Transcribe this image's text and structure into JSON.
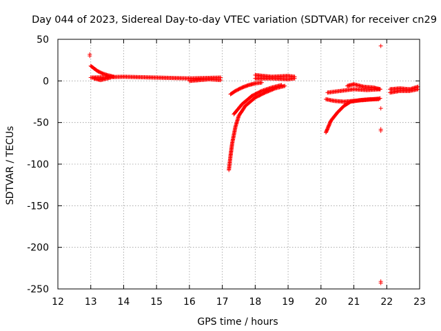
{
  "chart_data": {
    "type": "scatter",
    "title": "Day 044 of 2023, Sidereal Day-to-day VTEC variation (SDTVAR) for receiver cn29",
    "xlabel": "GPS time / hours",
    "ylabel": "SDTVAR / TECUs",
    "xlim": [
      12,
      23
    ],
    "ylim": [
      -250,
      50
    ],
    "xticks": [
      12,
      13,
      14,
      15,
      16,
      17,
      18,
      19,
      20,
      21,
      22,
      23
    ],
    "yticks": [
      50,
      0,
      -50,
      -100,
      -150,
      -200,
      -250
    ],
    "grid": true,
    "marker_color": "#ff0000",
    "marker": "+",
    "series": [
      {
        "name": "SDTVAR",
        "segments": [
          {
            "kind": "line",
            "x": [
              13.0,
              14.0,
              15.0,
              16.0,
              16.95
            ],
            "y": [
              4,
              5,
              4,
              3,
              4
            ]
          },
          {
            "kind": "line",
            "x": [
              13.0,
              13.1,
              13.2,
              13.35,
              13.5,
              13.7
            ],
            "y": [
              18,
              15,
              12,
              9,
              7,
              5
            ]
          },
          {
            "kind": "line",
            "x": [
              13.1,
              13.3,
              13.6
            ],
            "y": [
              3,
              1,
              4
            ]
          },
          {
            "kind": "line",
            "x": [
              16.0,
              16.3,
              16.6,
              16.95
            ],
            "y": [
              0,
              1,
              2,
              1
            ]
          },
          {
            "kind": "line",
            "x": [
              17.2,
              17.25,
              17.3,
              17.4,
              17.5,
              17.7,
              18.0,
              18.3,
              18.6,
              18.9
            ],
            "y": [
              -107,
              -90,
              -75,
              -55,
              -42,
              -30,
              -20,
              -14,
              -9,
              -6
            ]
          },
          {
            "kind": "line",
            "x": [
              17.25,
              17.4,
              17.6,
              17.8,
              18.0,
              18.2
            ],
            "y": [
              -16,
              -12,
              -8,
              -5,
              -3,
              -2
            ]
          },
          {
            "kind": "line",
            "x": [
              17.35,
              17.6,
              17.9,
              18.2,
              18.5,
              18.8
            ],
            "y": [
              -40,
              -28,
              -18,
              -12,
              -8,
              -5
            ]
          },
          {
            "kind": "line",
            "x": [
              18.0,
              18.5,
              19.0,
              19.2
            ],
            "y": [
              7,
              5,
              6,
              5
            ]
          },
          {
            "kind": "line",
            "x": [
              18.0,
              18.5,
              19.0,
              19.2
            ],
            "y": [
              3,
              3,
              2,
              3
            ]
          },
          {
            "kind": "line",
            "x": [
              20.15,
              20.3,
              20.5,
              20.7,
              20.9,
              21.2,
              21.5,
              21.75
            ],
            "y": [
              -62,
              -48,
              -38,
              -30,
              -25,
              -23,
              -22,
              -22
            ]
          },
          {
            "kind": "line",
            "x": [
              20.15,
              20.4,
              20.7,
              21.0,
              21.3,
              21.6,
              21.8
            ],
            "y": [
              -22,
              -24,
              -25,
              -24,
              -23,
              -22,
              -21
            ]
          },
          {
            "kind": "line",
            "x": [
              20.2,
              20.6,
              21.0,
              21.4,
              21.8
            ],
            "y": [
              -14,
              -12,
              -10,
              -11,
              -10
            ]
          },
          {
            "kind": "line",
            "x": [
              20.8,
              21.0,
              21.3,
              21.6,
              21.8
            ],
            "y": [
              -6,
              -4,
              -7,
              -8,
              -10
            ]
          },
          {
            "kind": "line",
            "x": [
              22.1,
              22.4,
              22.7,
              22.95
            ],
            "y": [
              -10,
              -9,
              -10,
              -7
            ]
          },
          {
            "kind": "line",
            "x": [
              22.1,
              22.4,
              22.7,
              22.95
            ],
            "y": [
              -14,
              -12,
              -12,
              -10
            ]
          }
        ],
        "points": [
          {
            "x": 12.97,
            "y": 32
          },
          {
            "x": 12.97,
            "y": 30
          },
          {
            "x": 21.82,
            "y": 42
          },
          {
            "x": 21.82,
            "y": -33
          },
          {
            "x": 21.82,
            "y": -58
          },
          {
            "x": 21.82,
            "y": -60
          },
          {
            "x": 21.82,
            "y": -241
          },
          {
            "x": 21.82,
            "y": -243
          }
        ]
      }
    ]
  }
}
